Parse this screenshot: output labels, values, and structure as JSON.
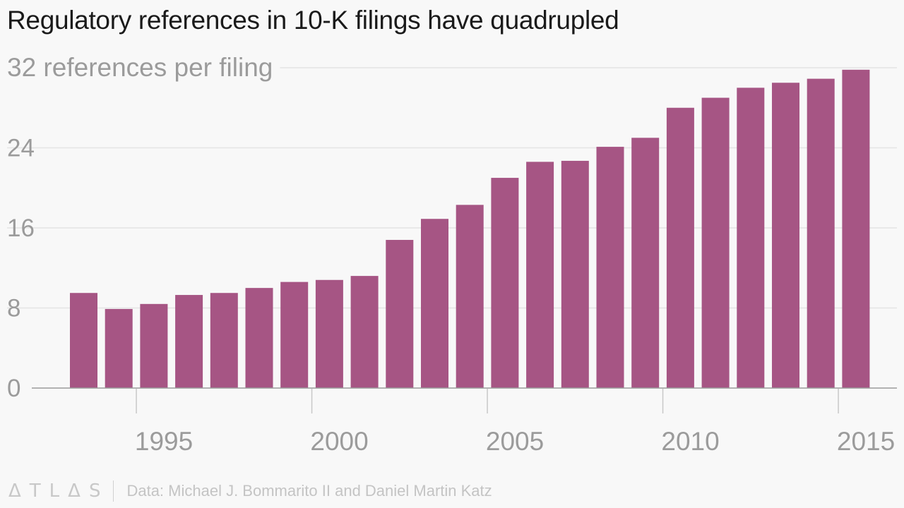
{
  "chart_data": {
    "type": "bar",
    "title": "Regulatory references in 10-K filings have quadrupled",
    "ylabel": "references per filing",
    "ylim": [
      0,
      32
    ],
    "yticks": [
      0,
      8,
      16,
      24,
      32
    ],
    "xticks": [
      1995,
      2000,
      2005,
      2010,
      2015
    ],
    "grid": true,
    "color": "#a65584",
    "x": [
      1994,
      1995,
      1996,
      1997,
      1998,
      1999,
      2000,
      2001,
      2002,
      2003,
      2004,
      2005,
      2006,
      2007,
      2008,
      2009,
      2010,
      2011,
      2012,
      2013,
      2014,
      2015,
      2016
    ],
    "values": [
      9.5,
      7.9,
      8.4,
      9.3,
      9.5,
      10.0,
      10.6,
      10.8,
      11.2,
      14.8,
      16.9,
      18.3,
      21.0,
      22.6,
      22.7,
      24.1,
      25.0,
      28.0,
      29.0,
      30.0,
      30.5,
      30.9,
      31.8
    ],
    "source": "Data: Michael J. Bommarito II and Daniel Martin Katz",
    "brand": "ATLAS"
  }
}
